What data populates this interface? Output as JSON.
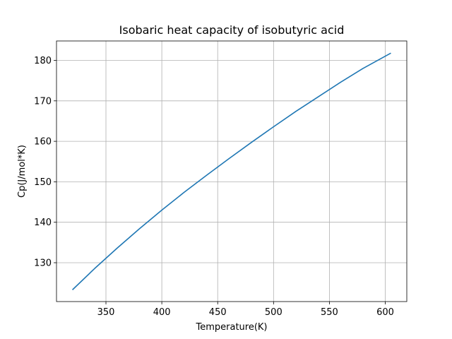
{
  "chart_data": {
    "type": "line",
    "title": "Isobaric heat capacity of isobutyric acid",
    "xlabel": "Temperature(K)",
    "ylabel": "Cp(J/mol*K)",
    "xlim": [
      305.75,
      619.25
    ],
    "ylim": [
      120.4,
      184.8
    ],
    "xticks": [
      350,
      400,
      450,
      500,
      550,
      600
    ],
    "yticks": [
      130,
      140,
      150,
      160,
      170,
      180
    ],
    "grid": true,
    "line_color": "#1f77b4",
    "series": [
      {
        "x": [
          320,
          340,
          360,
          380,
          400,
          420,
          440,
          460,
          480,
          500,
          520,
          540,
          560,
          580,
          605
        ],
        "values": [
          123.3,
          128.6,
          133.6,
          138.4,
          143.0,
          147.4,
          151.6,
          155.7,
          159.7,
          163.6,
          167.4,
          171.0,
          174.6,
          178.0,
          181.8
        ]
      }
    ]
  }
}
